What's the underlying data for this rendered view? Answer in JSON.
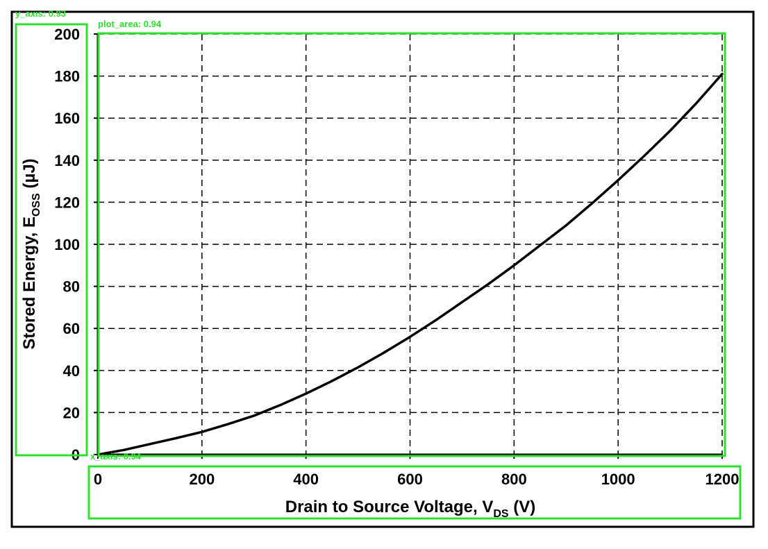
{
  "chart_data": {
    "type": "line",
    "title": "",
    "xlabel": "Drain to Source Voltage, V",
    "xlabel_sub": "DS",
    "xlabel_unit": " (V)",
    "ylabel": "Stored Energy, E",
    "ylabel_sub": "OSS",
    "ylabel_unit": "  (µJ)",
    "xlim": [
      0,
      1200
    ],
    "ylim": [
      0,
      200
    ],
    "xticks": [
      0,
      200,
      400,
      600,
      800,
      1000,
      1200
    ],
    "yticks": [
      0,
      20,
      40,
      60,
      80,
      100,
      120,
      140,
      160,
      180,
      200
    ],
    "grid": true,
    "grid_style": "dashed",
    "legend": false,
    "series": [
      {
        "color": "#000000",
        "x": [
          0,
          50,
          100,
          150,
          200,
          250,
          300,
          350,
          400,
          450,
          500,
          550,
          600,
          650,
          700,
          750,
          800,
          850,
          900,
          950,
          1000,
          1050,
          1100,
          1150,
          1200
        ],
        "y": [
          0,
          2.2,
          5,
          7.8,
          10.8,
          14.5,
          18.5,
          23.5,
          29,
          35,
          41.5,
          48.5,
          56,
          64,
          72.5,
          81,
          90,
          99.5,
          109,
          119.5,
          130.5,
          142,
          154,
          167,
          181
        ]
      }
    ]
  },
  "overlay": {
    "color": "#2de02d",
    "labels": {
      "y_axis": "y_axis: 0.93",
      "plot_area": "plot_area: 0.94",
      "x_axis": "x_axis: 0.94"
    }
  }
}
